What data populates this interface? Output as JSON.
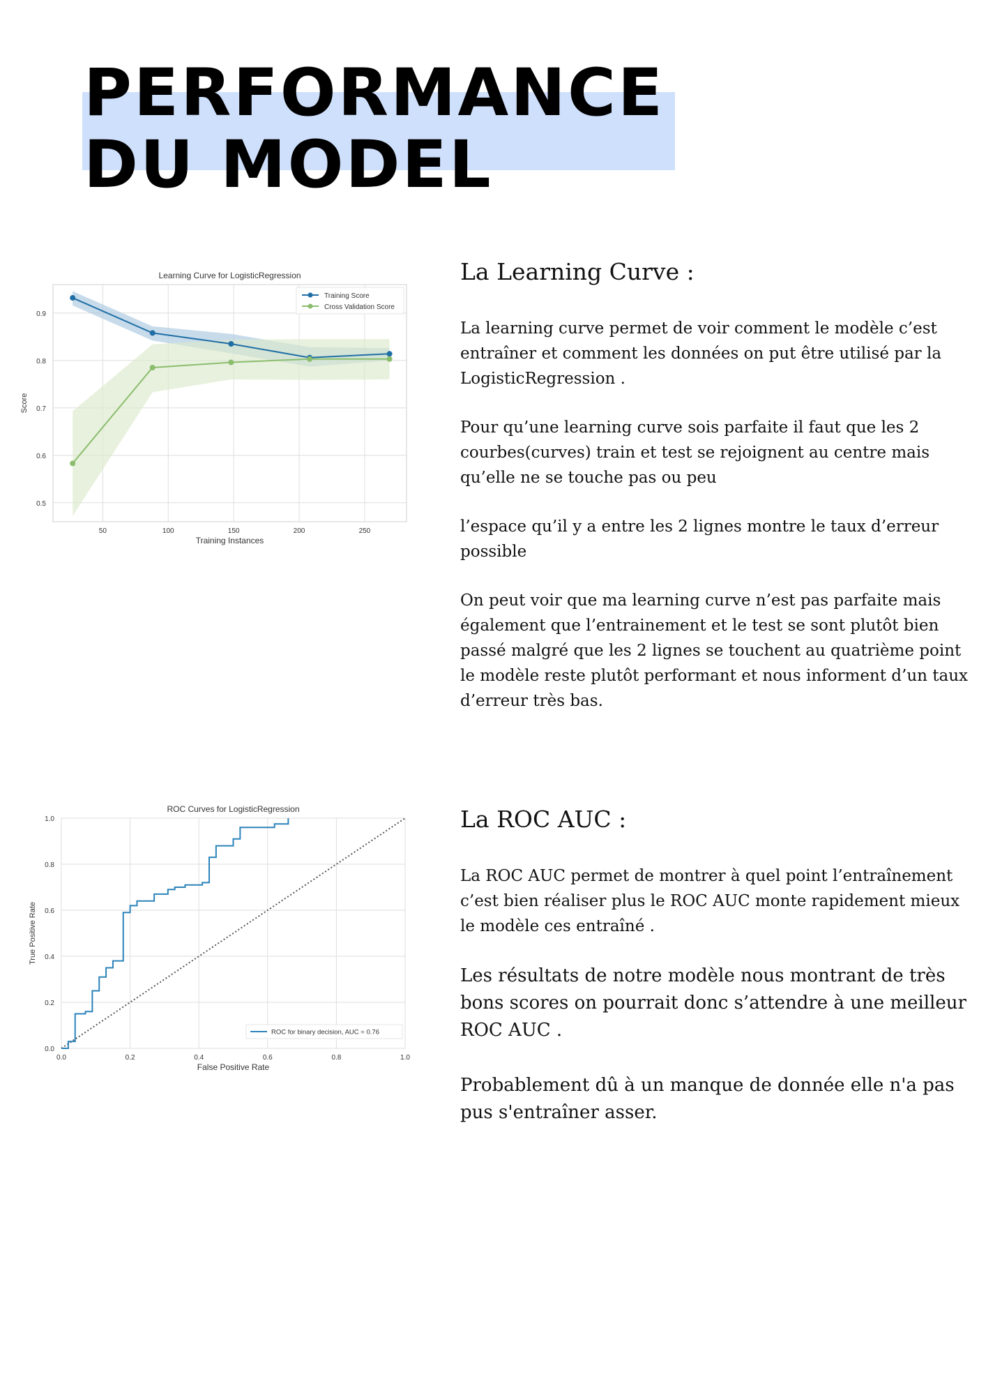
{
  "page": {
    "title_line1": "PERFORMANCE",
    "title_line2": "DU MODEL",
    "highlight_color": "#cfe0fc"
  },
  "sections": {
    "learning_curve": {
      "heading": "La Learning Curve :",
      "p1": "La learning curve permet de voir comment le modèle c’est entraîner et comment les données on put être utilisé par la LogisticRegression .",
      "p2": "Pour qu’une learning curve sois parfaite il faut que les 2 courbes(curves) train et test se rejoignent au centre mais qu’elle ne se touche pas ou peu",
      "p3": "l’espace qu’il y a entre les 2 lignes montre le taux d’erreur possible",
      "p4": "On peut voir que ma learning curve n’est pas parfaite mais également que l’entrainement et le test se sont plutôt bien passé malgré que les 2 lignes se touchent au quatrième point le modèle reste plutôt performant et nous informent d’un taux d’erreur très bas."
    },
    "roc": {
      "heading": "La ROC AUC :",
      "p1": "La ROC AUC  permet de montrer à quel point l’entraînement c’est bien réaliser plus le ROC AUC  monte rapidement mieux le modèle ces entraîné .",
      "p2": "Les résultats de notre modèle nous montrant de très bons scores on pourrait donc s’attendre à une meilleur ROC AUC .",
      "p3": "Probablement dû à un manque de donnée elle n'a pas pus s'entraîner asser."
    }
  },
  "chart_data": [
    {
      "type": "line",
      "title": "Learning Curve for LogisticRegression",
      "xlabel": "Training Instances",
      "ylabel": "Score",
      "xlim": [
        12,
        282
      ],
      "ylim": [
        0.46,
        0.96
      ],
      "xticks": [
        50,
        100,
        150,
        200,
        250
      ],
      "yticks": [
        0.5,
        0.6,
        0.7,
        0.8,
        0.9
      ],
      "grid": true,
      "legend_position": "top-right",
      "x": [
        27,
        88,
        148,
        208,
        269
      ],
      "series": [
        {
          "name": "Training Score",
          "color": "#1f6ea5",
          "band_color": "#a9c8e0",
          "values": [
            0.932,
            0.858,
            0.835,
            0.806,
            0.814
          ],
          "upper": [
            0.946,
            0.872,
            0.856,
            0.828,
            0.826
          ],
          "lower": [
            0.916,
            0.842,
            0.815,
            0.787,
            0.8
          ]
        },
        {
          "name": "Cross Validation Score",
          "color": "#8bbd6e",
          "band_color": "#dceacb",
          "values": [
            0.583,
            0.785,
            0.796,
            0.803,
            0.803
          ],
          "upper": [
            0.693,
            0.834,
            0.844,
            0.845,
            0.845
          ],
          "lower": [
            0.472,
            0.733,
            0.76,
            0.759,
            0.76
          ]
        }
      ]
    },
    {
      "type": "line",
      "title": "ROC Curves for LogisticRegression",
      "xlabel": "False Positive Rate",
      "ylabel": "True Positive Rate",
      "xlim": [
        0,
        1
      ],
      "ylim": [
        0,
        1
      ],
      "xticks": [
        0.0,
        0.2,
        0.4,
        0.6,
        0.8,
        1.0
      ],
      "yticks": [
        0.0,
        0.2,
        0.4,
        0.6,
        0.8,
        1.0
      ],
      "grid": true,
      "legend_position": "bottom-right",
      "series": [
        {
          "name": "ROC for binary decision, AUC = 0.76",
          "color": "#2b83ba",
          "x": [
            0,
            0.02,
            0.02,
            0.04,
            0.04,
            0.07,
            0.07,
            0.09,
            0.09,
            0.11,
            0.11,
            0.13,
            0.13,
            0.15,
            0.15,
            0.18,
            0.18,
            0.2,
            0.2,
            0.22,
            0.22,
            0.27,
            0.27,
            0.31,
            0.31,
            0.33,
            0.33,
            0.36,
            0.36,
            0.41,
            0.41,
            0.43,
            0.43,
            0.45,
            0.45,
            0.5,
            0.5,
            0.52,
            0.52,
            0.62,
            0.62,
            0.66,
            0.66
          ],
          "y": [
            0,
            0,
            0.03,
            0.03,
            0.15,
            0.15,
            0.16,
            0.16,
            0.25,
            0.25,
            0.31,
            0.31,
            0.35,
            0.35,
            0.38,
            0.38,
            0.59,
            0.59,
            0.62,
            0.62,
            0.64,
            0.64,
            0.67,
            0.67,
            0.69,
            0.69,
            0.7,
            0.7,
            0.71,
            0.71,
            0.72,
            0.72,
            0.83,
            0.83,
            0.88,
            0.88,
            0.91,
            0.91,
            0.96,
            0.96,
            0.975,
            0.975,
            1.0
          ]
        },
        {
          "name": "diagonal",
          "color": "#555555",
          "dashed": true,
          "x": [
            0,
            1
          ],
          "y": [
            0,
            1
          ]
        }
      ]
    }
  ]
}
